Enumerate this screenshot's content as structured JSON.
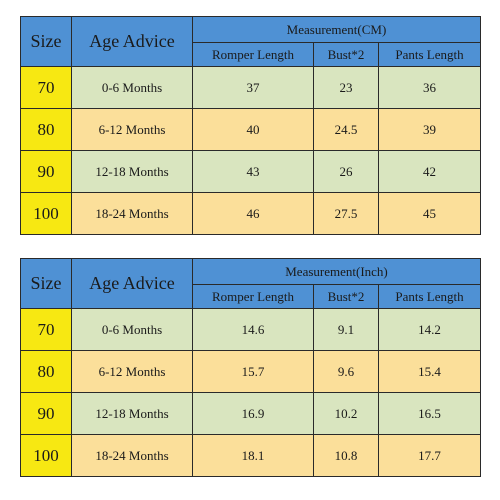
{
  "tables": [
    {
      "header": {
        "size": "Size",
        "age": "Age Advice",
        "measurement": "Measurement(CM)",
        "romper": "Romper Length",
        "bust": "Bust*2",
        "pants": "Pants Length"
      },
      "rows": [
        {
          "size": "70",
          "age": "0-6 Months",
          "romper": "37",
          "bust": "23",
          "pants": "36"
        },
        {
          "size": "80",
          "age": "6-12 Months",
          "romper": "40",
          "bust": "24.5",
          "pants": "39"
        },
        {
          "size": "90",
          "age": "12-18 Months",
          "romper": "43",
          "bust": "26",
          "pants": "42"
        },
        {
          "size": "100",
          "age": "18-24 Months",
          "romper": "46",
          "bust": "27.5",
          "pants": "45"
        }
      ]
    },
    {
      "header": {
        "size": "Size",
        "age": "Age Advice",
        "measurement": "Measurement(Inch)",
        "romper": "Romper Length",
        "bust": "Bust*2",
        "pants": "Pants Length"
      },
      "rows": [
        {
          "size": "70",
          "age": "0-6 Months",
          "romper": "14.6",
          "bust": "9.1",
          "pants": "14.2"
        },
        {
          "size": "80",
          "age": "6-12 Months",
          "romper": "15.7",
          "bust": "9.6",
          "pants": "15.4"
        },
        {
          "size": "90",
          "age": "12-18 Months",
          "romper": "16.9",
          "bust": "10.2",
          "pants": "16.5"
        },
        {
          "size": "100",
          "age": "18-24 Months",
          "romper": "18.1",
          "bust": "10.8",
          "pants": "17.7"
        }
      ]
    }
  ],
  "colors": {
    "header_blue": "#4f91d4",
    "size_yellow": "#f7e812",
    "row_green": "#d9e5bf",
    "row_orange": "#fbdf9a"
  }
}
